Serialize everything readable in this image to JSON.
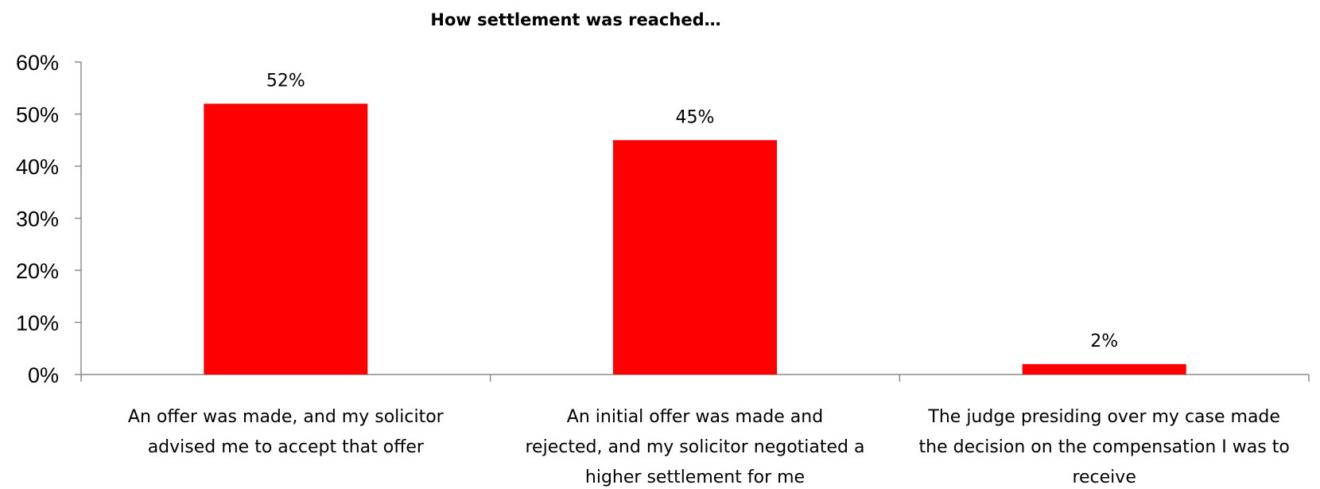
{
  "chart_data": {
    "type": "bar",
    "title": "How settlement was reached…",
    "categories": [
      [
        "An offer was made, and my solicitor",
        "advised me to accept that offer"
      ],
      [
        "An initial offer was made and",
        "rejected, and my solicitor negotiated a",
        "higher settlement for me"
      ],
      [
        "The judge presiding over my case made",
        "the decision on the compensation I was to",
        "receive"
      ]
    ],
    "values": [
      52,
      45,
      2
    ],
    "data_labels": [
      "52%",
      "45%",
      "2%"
    ],
    "ylim": [
      0,
      60
    ],
    "yticks": [
      "0%",
      "10%",
      "20%",
      "30%",
      "40%",
      "50%",
      "60%"
    ],
    "xlabel": "",
    "ylabel": "",
    "grid": false,
    "legend": "none",
    "bar_color": "#ff0000"
  }
}
